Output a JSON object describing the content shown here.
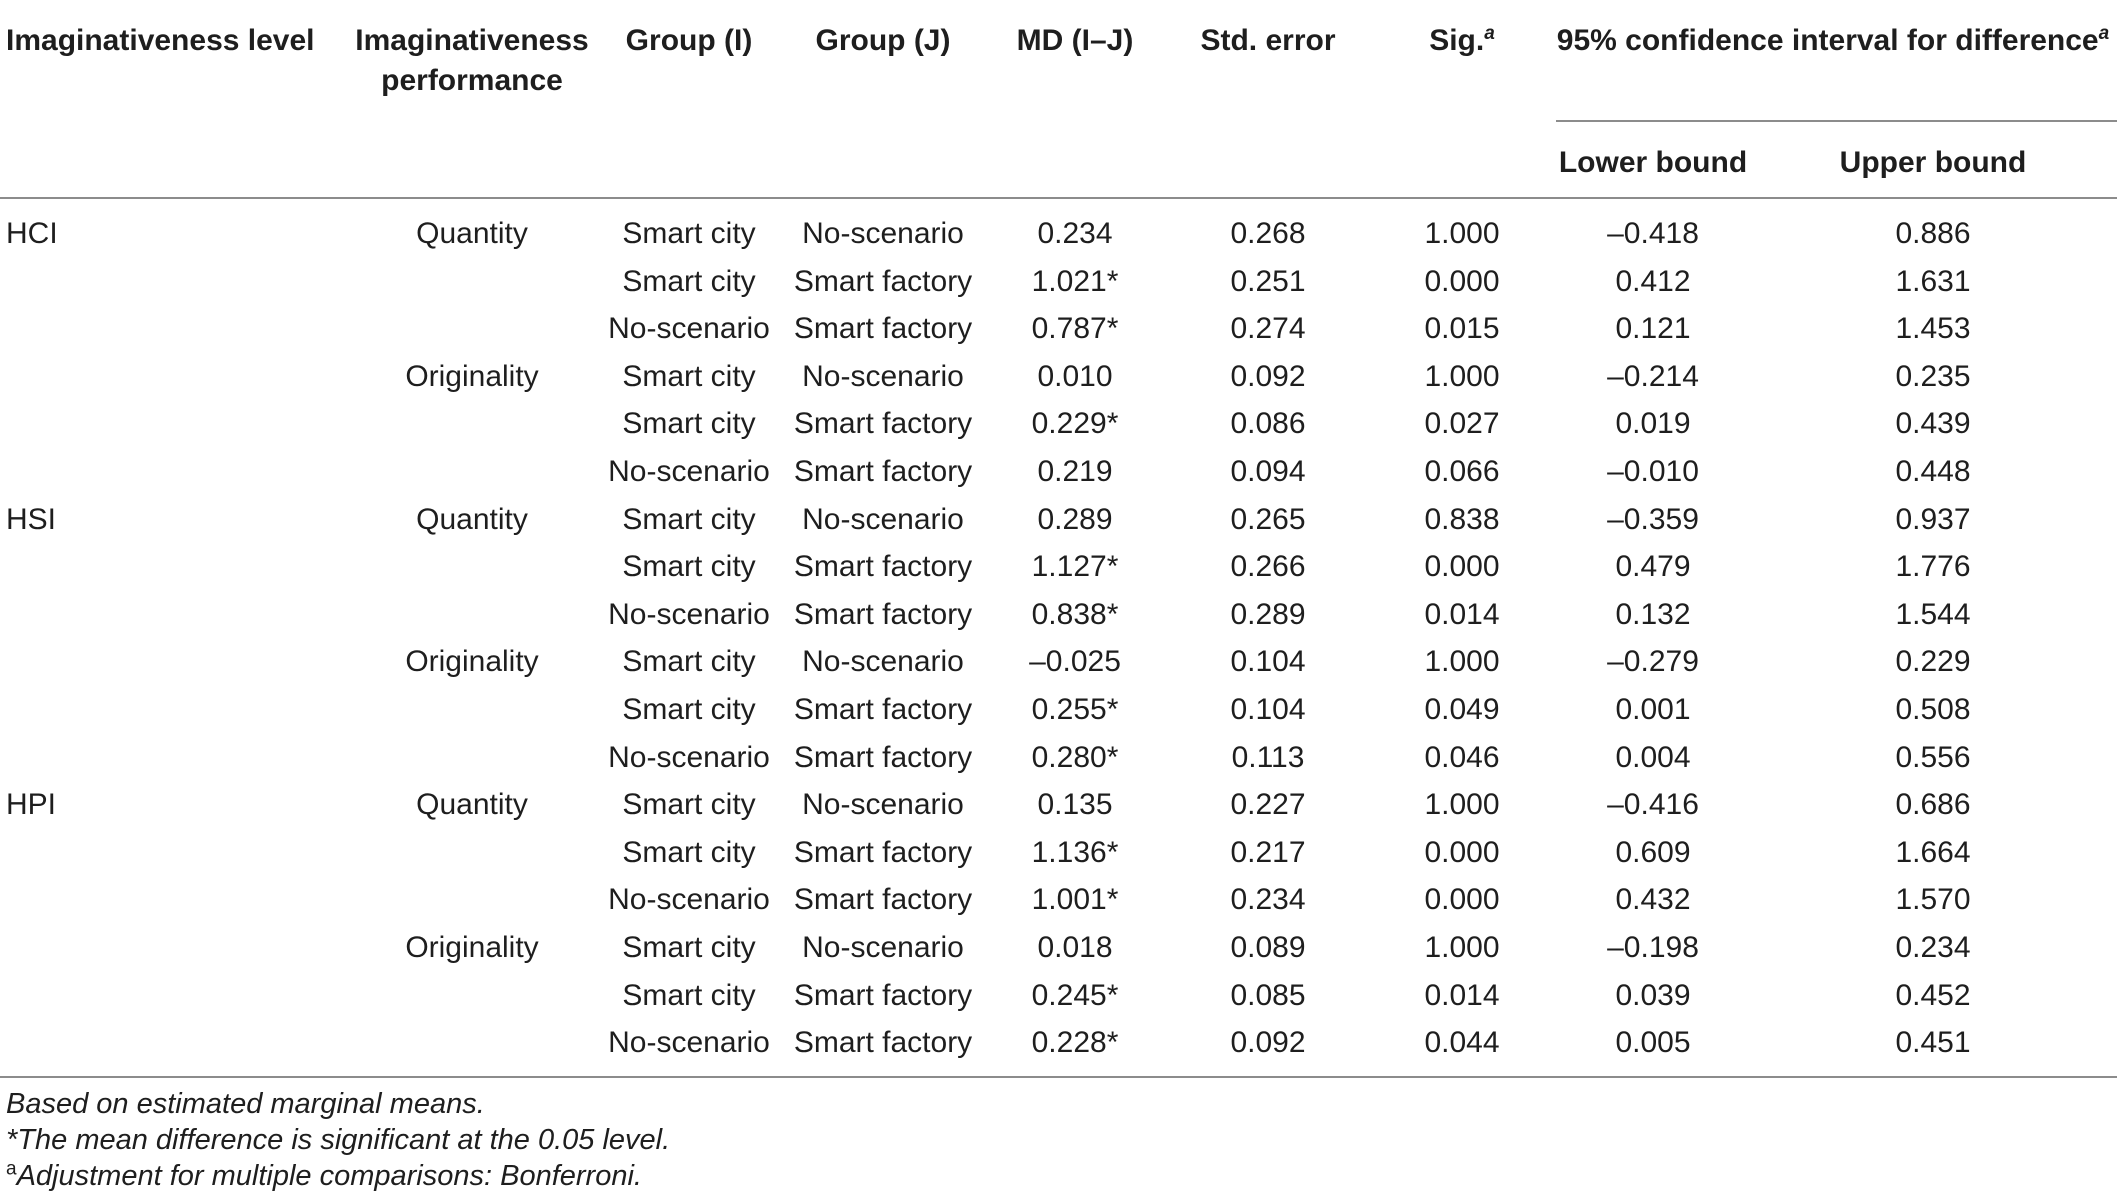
{
  "headers": {
    "level": "Imaginativeness level",
    "performance_1": "Imaginativeness",
    "performance_2": "performance",
    "group_i": "Group (I)",
    "group_j": "Group (J)",
    "md": "MD (I–J)",
    "se": "Std. error",
    "sig": "Sig.",
    "sig_sup": "a",
    "ci": "95% confidence interval for difference",
    "ci_sup": "a",
    "lower": "Lower bound",
    "upper": "Upper bound"
  },
  "rows": [
    {
      "level": "HCI",
      "perf": "Quantity",
      "gi": "Smart city",
      "gj": "No-scenario",
      "md": "0.234",
      "se": "0.268",
      "sig": "1.000",
      "lo": "–0.418",
      "hi": "0.886"
    },
    {
      "level": "",
      "perf": "",
      "gi": "Smart city",
      "gj": "Smart factory",
      "md": "1.021*",
      "se": "0.251",
      "sig": "0.000",
      "lo": "0.412",
      "hi": "1.631"
    },
    {
      "level": "",
      "perf": "",
      "gi": "No-scenario",
      "gj": "Smart factory",
      "md": "0.787*",
      "se": "0.274",
      "sig": "0.015",
      "lo": "0.121",
      "hi": "1.453"
    },
    {
      "level": "",
      "perf": "Originality",
      "gi": "Smart city",
      "gj": "No-scenario",
      "md": "0.010",
      "se": "0.092",
      "sig": "1.000",
      "lo": "–0.214",
      "hi": "0.235"
    },
    {
      "level": "",
      "perf": "",
      "gi": "Smart city",
      "gj": "Smart factory",
      "md": "0.229*",
      "se": "0.086",
      "sig": "0.027",
      "lo": "0.019",
      "hi": "0.439"
    },
    {
      "level": "",
      "perf": "",
      "gi": "No-scenario",
      "gj": "Smart factory",
      "md": "0.219",
      "se": "0.094",
      "sig": "0.066",
      "lo": "–0.010",
      "hi": "0.448"
    },
    {
      "level": "HSI",
      "perf": "Quantity",
      "gi": "Smart city",
      "gj": "No-scenario",
      "md": "0.289",
      "se": "0.265",
      "sig": "0.838",
      "lo": "–0.359",
      "hi": "0.937"
    },
    {
      "level": "",
      "perf": "",
      "gi": "Smart city",
      "gj": "Smart factory",
      "md": "1.127*",
      "se": "0.266",
      "sig": "0.000",
      "lo": "0.479",
      "hi": "1.776"
    },
    {
      "level": "",
      "perf": "",
      "gi": "No-scenario",
      "gj": "Smart factory",
      "md": "0.838*",
      "se": "0.289",
      "sig": "0.014",
      "lo": "0.132",
      "hi": "1.544"
    },
    {
      "level": "",
      "perf": "Originality",
      "gi": "Smart city",
      "gj": "No-scenario",
      "md": "–0.025",
      "se": "0.104",
      "sig": "1.000",
      "lo": "–0.279",
      "hi": "0.229"
    },
    {
      "level": "",
      "perf": "",
      "gi": "Smart city",
      "gj": "Smart factory",
      "md": "0.255*",
      "se": "0.104",
      "sig": "0.049",
      "lo": "0.001",
      "hi": "0.508"
    },
    {
      "level": "",
      "perf": "",
      "gi": "No-scenario",
      "gj": "Smart factory",
      "md": "0.280*",
      "se": "0.113",
      "sig": "0.046",
      "lo": "0.004",
      "hi": "0.556"
    },
    {
      "level": "HPI",
      "perf": "Quantity",
      "gi": "Smart city",
      "gj": "No-scenario",
      "md": "0.135",
      "se": "0.227",
      "sig": "1.000",
      "lo": "–0.416",
      "hi": "0.686"
    },
    {
      "level": "",
      "perf": "",
      "gi": "Smart city",
      "gj": "Smart factory",
      "md": "1.136*",
      "se": "0.217",
      "sig": "0.000",
      "lo": "0.609",
      "hi": "1.664"
    },
    {
      "level": "",
      "perf": "",
      "gi": "No-scenario",
      "gj": "Smart factory",
      "md": "1.001*",
      "se": "0.234",
      "sig": "0.000",
      "lo": "0.432",
      "hi": "1.570"
    },
    {
      "level": "",
      "perf": "Originality",
      "gi": "Smart city",
      "gj": "No-scenario",
      "md": "0.018",
      "se": "0.089",
      "sig": "1.000",
      "lo": "–0.198",
      "hi": "0.234"
    },
    {
      "level": "",
      "perf": "",
      "gi": "Smart city",
      "gj": "Smart factory",
      "md": "0.245*",
      "se": "0.085",
      "sig": "0.014",
      "lo": "0.039",
      "hi": "0.452"
    },
    {
      "level": "",
      "perf": "",
      "gi": "No-scenario",
      "gj": "Smart factory",
      "md": "0.228*",
      "se": "0.092",
      "sig": "0.044",
      "lo": "0.005",
      "hi": "0.451"
    }
  ],
  "footnotes": {
    "line1": "Based on estimated marginal means.",
    "line2": "*The mean difference is significant at the 0.05 level.",
    "line3_sup": "a",
    "line3": "Adjustment for multiple comparisons: Bonferroni."
  }
}
